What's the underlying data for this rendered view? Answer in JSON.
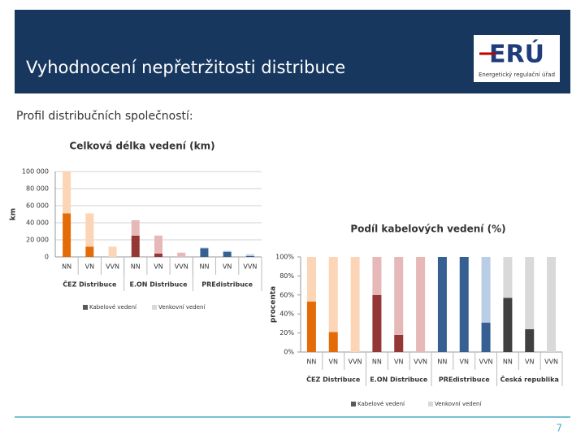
{
  "header": {
    "title": "Vyhodnocení nepřetržitosti distribuce",
    "logo": "ERÚ",
    "logo_caption": "Energetický regulační úřad"
  },
  "subtitle": "Profil distribučních společností:",
  "page_number": "7",
  "chart_data": [
    {
      "type": "bar",
      "stacked": true,
      "title": "Celková délka vedení (km)",
      "y_label": "km",
      "categories": [
        "NN",
        "VN",
        "VVN",
        "NN",
        "VN",
        "VVN",
        "NN",
        "VN",
        "VVN"
      ],
      "groups": [
        "ČEZ Distribuce",
        "E.ON Distribuce",
        "PREdistribuce"
      ],
      "series": [
        {
          "name": "Kabelové vedení",
          "color": "#595959",
          "values": [
            51000,
            12000,
            0,
            25000,
            4000,
            0,
            10000,
            6000,
            1000
          ],
          "bar_colors": [
            "#e36c09",
            "#e36c09",
            "#e36c09",
            "#953735",
            "#953735",
            "#953735",
            "#376092",
            "#376092",
            "#376092"
          ]
        },
        {
          "name": "Venkovní vedení",
          "color": "#d9d9d9",
          "values": [
            49000,
            39000,
            12000,
            18000,
            21000,
            5000,
            1000,
            1000,
            2000
          ],
          "bar_colors": [
            "#fbd5b5",
            "#fbd5b5",
            "#fbd5b5",
            "#e6b9b8",
            "#e6b9b8",
            "#e6b9b8",
            "#b9cde5",
            "#b9cde5",
            "#b9cde5"
          ]
        }
      ],
      "ylim": [
        0,
        100000
      ],
      "yticks": [
        0,
        {
          "value": 20000,
          "label": "20 000"
        },
        {
          "value": 40000,
          "label": "40 000"
        },
        {
          "value": 60000,
          "label": "60 000"
        },
        {
          "value": 80000,
          "label": "80 000"
        },
        {
          "value": 100000,
          "label": "100 000"
        }
      ],
      "grid": true
    },
    {
      "type": "bar",
      "stacked": true,
      "title": "Podíl kabelových vedení (%)",
      "y_label": "procenta",
      "categories": [
        "NN",
        "VN",
        "VVN",
        "NN",
        "VN",
        "VVN",
        "NN",
        "VN",
        "VVN",
        "NN",
        "VN",
        "VVN"
      ],
      "groups": [
        "ČEZ Distribuce",
        "E.ON Distribuce",
        "PREdistribuce",
        "Česká republika"
      ],
      "series": [
        {
          "name": "Kabelové vedení",
          "color": "#595959",
          "values": [
            53,
            21,
            0,
            60,
            18,
            0,
            100,
            100,
            31,
            57,
            24,
            0
          ],
          "bar_colors": [
            "#e36c09",
            "#e36c09",
            "#e36c09",
            "#953735",
            "#953735",
            "#953735",
            "#376092",
            "#376092",
            "#376092",
            "#404040",
            "#404040",
            "#404040"
          ]
        },
        {
          "name": "Venkovní vedení",
          "color": "#d9d9d9",
          "values": [
            47,
            79,
            100,
            40,
            82,
            100,
            0,
            0,
            69,
            43,
            76,
            100
          ],
          "bar_colors": [
            "#fbd5b5",
            "#fbd5b5",
            "#fbd5b5",
            "#e6b9b8",
            "#e6b9b8",
            "#e6b9b8",
            "#b9cde5",
            "#b9cde5",
            "#b9cde5",
            "#d9d9d9",
            "#d9d9d9",
            "#d9d9d9"
          ]
        }
      ],
      "ylim": [
        0,
        100
      ],
      "yticks": [
        {
          "value": 0,
          "label": "0%"
        },
        {
          "value": 20,
          "label": "20%"
        },
        {
          "value": 40,
          "label": "40%"
        },
        {
          "value": 60,
          "label": "60%"
        },
        {
          "value": 80,
          "label": "80%"
        },
        {
          "value": 100,
          "label": "100%"
        }
      ],
      "grid": false
    }
  ]
}
